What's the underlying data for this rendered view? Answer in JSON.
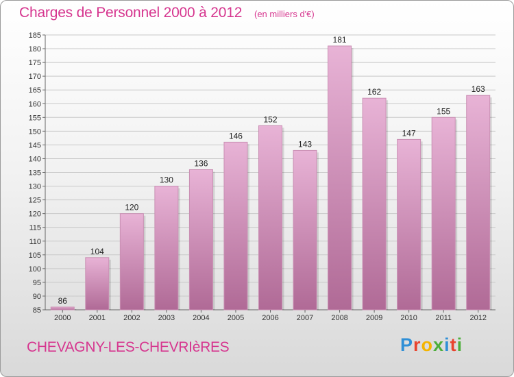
{
  "header": {
    "title": "Charges de Personnel 2000 à 2012",
    "subtitle": "(en milliers d'€)"
  },
  "footer": {
    "commune": "CHEVAGNY-LES-CHEVRIèRES",
    "logo_text": "Proxiti",
    "logo_colors": [
      "#2f8fd6",
      "#e8432d",
      "#f4b400",
      "#4cae3a",
      "#2f8fd6",
      "#e8432d",
      "#4cae3a"
    ]
  },
  "colors": {
    "bar_top": "#e8b3d6",
    "bar_bottom": "#b06a96",
    "title": "#d6368f"
  },
  "chart_data": {
    "type": "bar",
    "title": "Charges de Personnel 2000 à 2012",
    "subtitle": "(en milliers d'€)",
    "categories": [
      "2000",
      "2001",
      "2002",
      "2003",
      "2004",
      "2005",
      "2006",
      "2007",
      "2008",
      "2009",
      "2010",
      "2011",
      "2012"
    ],
    "values": [
      86,
      104,
      120,
      130,
      136,
      146,
      152,
      143,
      181,
      162,
      147,
      155,
      163
    ],
    "ylim": [
      85,
      185
    ],
    "yticks": [
      85,
      90,
      95,
      100,
      105,
      110,
      115,
      120,
      125,
      130,
      135,
      140,
      145,
      150,
      155,
      160,
      165,
      170,
      175,
      180,
      185
    ],
    "grid": true,
    "xlabel": "",
    "ylabel": ""
  }
}
